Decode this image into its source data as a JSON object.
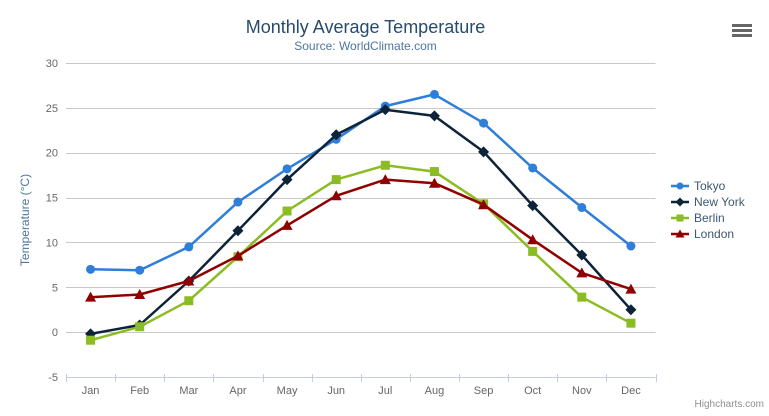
{
  "chart": {
    "title": "Monthly Average Temperature",
    "subtitle": "Source: WorldClimate.com",
    "credits": "Highcharts.com",
    "colors": {
      "title": "#274b6d",
      "subtitle": "#4d759e",
      "axis_title": "#4d759e",
      "tick_label": "#666666",
      "gridline": "#C8C8C8",
      "axis_line": "#C0D0E0",
      "legend_text": "#3E576F",
      "credits_text": "#909090",
      "menu_icon": "#666666"
    }
  },
  "chart_data": {
    "type": "line",
    "title": "Monthly Average Temperature",
    "subtitle": "Source: WorldClimate.com",
    "categories": [
      "Jan",
      "Feb",
      "Mar",
      "Apr",
      "May",
      "Jun",
      "Jul",
      "Aug",
      "Sep",
      "Oct",
      "Nov",
      "Dec"
    ],
    "xlabel": "",
    "ylabel": "Temperature (°C)",
    "ylim": [
      -5,
      30
    ],
    "ytick_step": 5,
    "grid": true,
    "legend_position": "right",
    "series": [
      {
        "name": "Tokyo",
        "color": "#2f7ed8",
        "marker": "circle",
        "values": [
          7.0,
          6.9,
          9.5,
          14.5,
          18.2,
          21.5,
          25.2,
          26.5,
          23.3,
          18.3,
          13.9,
          9.6
        ]
      },
      {
        "name": "New York",
        "color": "#0d233a",
        "marker": "diamond",
        "values": [
          -0.2,
          0.8,
          5.7,
          11.3,
          17.0,
          22.0,
          24.8,
          24.1,
          20.1,
          14.1,
          8.6,
          2.5
        ]
      },
      {
        "name": "Berlin",
        "color": "#8bbc21",
        "marker": "square",
        "values": [
          -0.9,
          0.6,
          3.5,
          8.4,
          13.5,
          17.0,
          18.6,
          17.9,
          14.3,
          9.0,
          3.9,
          1.0
        ]
      },
      {
        "name": "London",
        "color": "#910000",
        "marker": "triangle",
        "values": [
          3.9,
          4.2,
          5.7,
          8.5,
          11.9,
          15.2,
          17.0,
          16.6,
          14.2,
          10.3,
          6.6,
          4.8
        ]
      }
    ]
  }
}
